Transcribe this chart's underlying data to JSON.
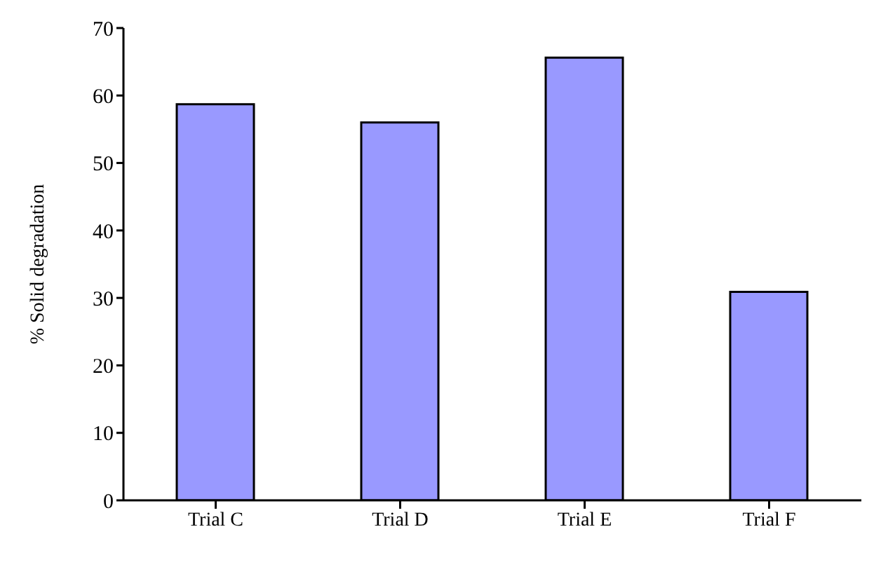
{
  "chart_data": {
    "type": "bar",
    "ylabel": "% Solid degradation",
    "categories": [
      "Trial C",
      "Trial D",
      "Trial E",
      "Trial F"
    ],
    "values": [
      58.7,
      56.0,
      65.6,
      30.9
    ],
    "color": "#9999ff",
    "ylim": [
      0,
      70
    ],
    "yticks": [
      0,
      10,
      20,
      30,
      40,
      50,
      60,
      70
    ],
    "grid": false
  }
}
